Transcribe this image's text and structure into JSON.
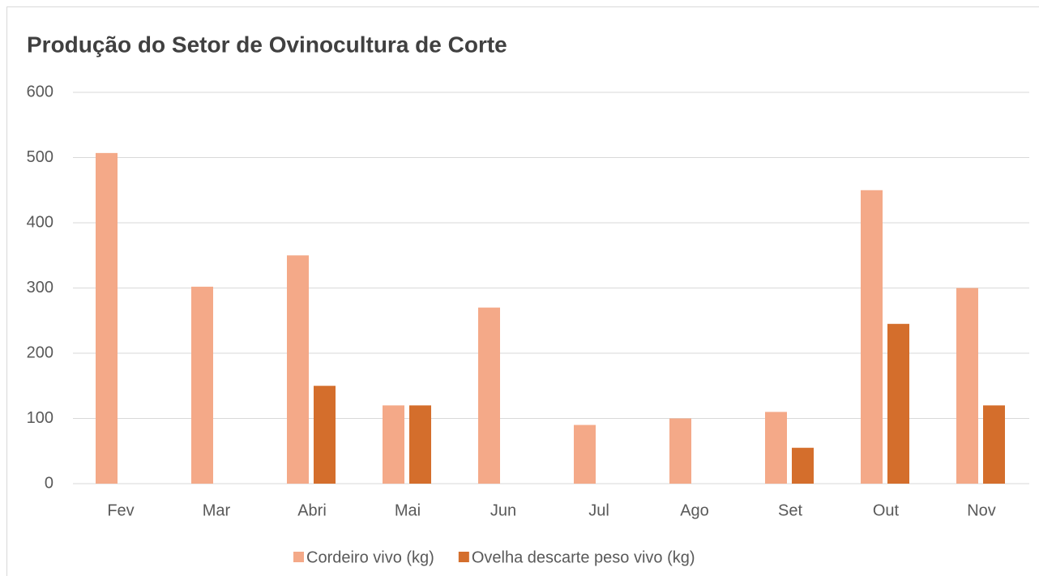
{
  "chart_data": {
    "type": "bar",
    "title": "Produção do Setor de Ovinocultura de Corte",
    "categories": [
      "Fev",
      "Mar",
      "Abri",
      "Mai",
      "Jun",
      "Jul",
      "Ago",
      "Set",
      "Out",
      "Nov"
    ],
    "series": [
      {
        "name": "Cordeiro vivo (kg)",
        "color": "#f4a988",
        "values": [
          507,
          302,
          350,
          120,
          270,
          90,
          100,
          110,
          450,
          300
        ]
      },
      {
        "name": "Ovelha descarte peso vivo (kg)",
        "color": "#d46e2c",
        "values": [
          0,
          0,
          150,
          120,
          0,
          0,
          0,
          55,
          245,
          120
        ]
      }
    ],
    "ylim": [
      0,
      600
    ],
    "yticks": [
      0,
      100,
      200,
      300,
      400,
      500,
      600
    ],
    "grid": true,
    "legend": "bottom"
  }
}
